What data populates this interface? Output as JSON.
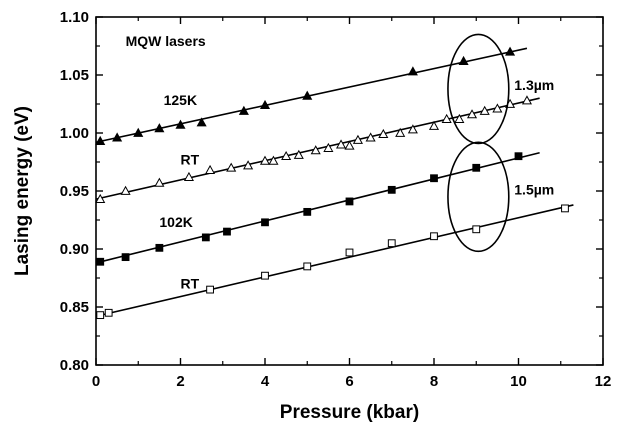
{
  "chart_data": {
    "type": "scatter",
    "title": "",
    "xlabel": "Pressure (kbar)",
    "ylabel": "Lasing energy (eV)",
    "xlim": [
      0,
      12
    ],
    "ylim": [
      0.8,
      1.1
    ],
    "xticks": [
      0,
      2,
      4,
      6,
      8,
      10,
      12
    ],
    "yticks": [
      0.8,
      0.85,
      0.9,
      0.95,
      1.0,
      1.05,
      1.1
    ],
    "xtick_labels": [
      "0",
      "2",
      "4",
      "6",
      "8",
      "10",
      "12"
    ],
    "ytick_labels": [
      "0.80",
      "0.85",
      "0.90",
      "0.95",
      "1.00",
      "1.05",
      "1.10"
    ],
    "grid": false,
    "series": [
      {
        "name": "125K",
        "marker": "filled-triangle",
        "fit_x": [
          0,
          10.2
        ],
        "fit_y": [
          0.992,
          1.073
        ],
        "x": [
          0.1,
          0.5,
          1.0,
          1.5,
          2.0,
          2.5,
          3.5,
          4.0,
          5.0,
          7.5,
          8.7,
          9.8
        ],
        "y": [
          0.993,
          0.996,
          1.0,
          1.004,
          1.007,
          1.009,
          1.019,
          1.024,
          1.032,
          1.053,
          1.062,
          1.07
        ]
      },
      {
        "name": "RT",
        "marker": "open-triangle",
        "fit_x": [
          0,
          10.5
        ],
        "fit_y": [
          0.943,
          1.03
        ],
        "x": [
          0.1,
          0.7,
          1.5,
          2.2,
          2.7,
          3.2,
          3.6,
          4.0,
          4.2,
          4.5,
          4.8,
          5.2,
          5.5,
          5.8,
          6.0,
          6.2,
          6.5,
          6.8,
          7.2,
          7.5,
          8.0,
          8.3,
          8.6,
          8.9,
          9.2,
          9.5,
          9.8,
          10.2
        ],
        "y": [
          0.943,
          0.95,
          0.957,
          0.962,
          0.968,
          0.97,
          0.972,
          0.976,
          0.976,
          0.98,
          0.981,
          0.985,
          0.987,
          0.99,
          0.989,
          0.994,
          0.996,
          0.999,
          1.0,
          1.003,
          1.006,
          1.012,
          1.012,
          1.016,
          1.019,
          1.021,
          1.025,
          1.028
        ]
      },
      {
        "name": "102K",
        "marker": "filled-square",
        "fit_x": [
          0,
          10.5
        ],
        "fit_y": [
          0.888,
          0.983
        ],
        "x": [
          0.1,
          0.7,
          1.5,
          2.6,
          3.1,
          4.0,
          5.0,
          6.0,
          7.0,
          8.0,
          9.0,
          10.0
        ],
        "y": [
          0.889,
          0.893,
          0.901,
          0.91,
          0.915,
          0.923,
          0.932,
          0.941,
          0.951,
          0.961,
          0.97,
          0.98
        ]
      },
      {
        "name": "RT",
        "marker": "open-square",
        "fit_x": [
          0,
          11.3
        ],
        "fit_y": [
          0.842,
          0.938
        ],
        "x": [
          0.1,
          0.3,
          2.7,
          4.0,
          5.0,
          6.0,
          7.0,
          8.0,
          9.0,
          11.1
        ],
        "y": [
          0.843,
          0.845,
          0.865,
          0.877,
          0.885,
          0.897,
          0.905,
          0.911,
          0.917,
          0.935
        ]
      }
    ],
    "annotations": [
      {
        "text": "MQW lasers",
        "x": 0.7,
        "y": 1.075
      },
      {
        "text": "125K",
        "x": 1.6,
        "y": 1.024
      },
      {
        "text": "RT",
        "x": 2.0,
        "y": 0.973
      },
      {
        "text": "102K",
        "x": 1.5,
        "y": 0.919
      },
      {
        "text": "RT",
        "x": 2.0,
        "y": 0.866
      },
      {
        "text": "1.3µm",
        "x": 9.9,
        "y": 1.037
      },
      {
        "text": "1.5µm",
        "x": 9.9,
        "y": 0.947
      }
    ],
    "ellipses": [
      {
        "label": "1.3µm",
        "cx": 9.05,
        "cy": 1.038,
        "rx": 0.72,
        "ry": 0.047
      },
      {
        "label": "1.5µm",
        "cx": 9.05,
        "cy": 0.945,
        "rx": 0.72,
        "ry": 0.047
      }
    ]
  }
}
